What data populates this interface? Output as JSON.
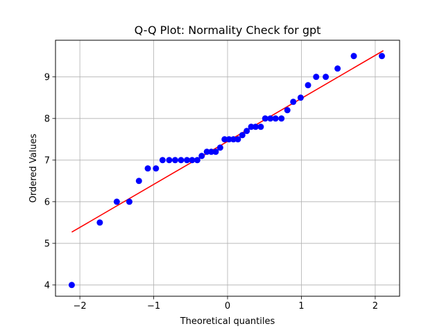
{
  "chart_data": {
    "type": "scatter",
    "title": "Q-Q Plot: Normality Check for gpt",
    "xlabel": "Theoretical quantiles",
    "ylabel": "Ordered Values",
    "xlim": [
      -2.33,
      2.33
    ],
    "ylim": [
      3.73,
      9.88
    ],
    "xticks": [
      -2,
      -1,
      0,
      1,
      2
    ],
    "xtick_labels": [
      "−2",
      "−1",
      "0",
      "1",
      "2"
    ],
    "yticks": [
      4,
      5,
      6,
      7,
      8,
      9
    ],
    "ytick_labels": [
      "4",
      "5",
      "6",
      "7",
      "8",
      "9"
    ],
    "grid": true,
    "legend": "none",
    "colors": {
      "points": "#0000ff",
      "fit_line": "#ff0000",
      "grid": "#b0b0b0"
    },
    "points": {
      "x": [
        -2.11,
        -1.73,
        -1.5,
        -1.33,
        -1.2,
        -1.08,
        -0.97,
        -0.88,
        -0.79,
        -0.71,
        -0.63,
        -0.55,
        -0.48,
        -0.41,
        -0.35,
        -0.28,
        -0.22,
        -0.16,
        -0.1,
        -0.04,
        0.02,
        0.08,
        0.14,
        0.2,
        0.26,
        0.32,
        0.38,
        0.45,
        0.51,
        0.58,
        0.65,
        0.73,
        0.81,
        0.89,
        0.99,
        1.09,
        1.2,
        1.33,
        1.49,
        1.71,
        2.09
      ],
      "y": [
        4.0,
        5.5,
        6.0,
        6.0,
        6.5,
        6.8,
        6.8,
        7.0,
        7.0,
        7.0,
        7.0,
        7.0,
        7.0,
        7.0,
        7.1,
        7.2,
        7.2,
        7.2,
        7.3,
        7.5,
        7.5,
        7.5,
        7.5,
        7.6,
        7.7,
        7.8,
        7.8,
        7.8,
        8.0,
        8.0,
        8.0,
        8.0,
        8.2,
        8.4,
        8.5,
        8.8,
        9.0,
        9.0,
        9.2,
        9.5,
        9.5
      ]
    },
    "fit_line": {
      "x": [
        -2.11,
        2.11
      ],
      "y": [
        5.27,
        9.63
      ]
    }
  }
}
